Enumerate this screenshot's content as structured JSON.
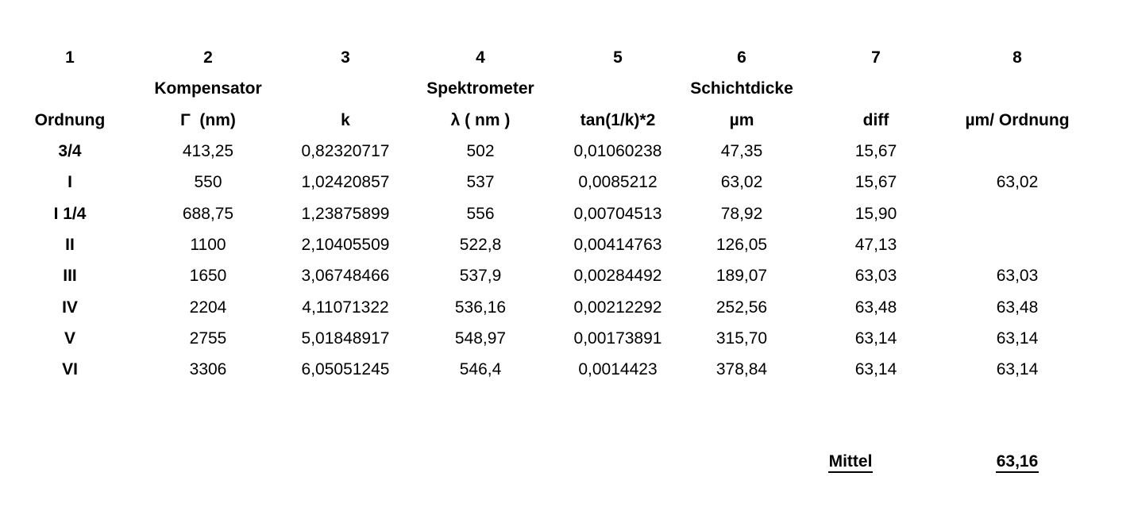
{
  "colors": {
    "text": "#000000",
    "background": "#ffffff"
  },
  "chart_data": {
    "type": "table",
    "column_numbers": [
      "1",
      "2",
      "3",
      "4",
      "5",
      "6",
      "7",
      "8"
    ],
    "group_headers": {
      "kompensator": "Kompensator",
      "spektrometer": "Spektrometer",
      "schichtdicke": "Schichtdicke"
    },
    "column_headers": [
      "Ordnung",
      "Γ  (nm)",
      "k",
      "λ ( nm )",
      "tan(1/k)*2",
      "µm",
      "diff",
      "µm/ Ordnung"
    ],
    "rows": [
      [
        "3/4",
        "413,25",
        "0,82320717",
        "502",
        "0,01060238",
        "47,35",
        "15,67",
        ""
      ],
      [
        "I",
        "550",
        "1,02420857",
        "537",
        "0,0085212",
        "63,02",
        "15,67",
        "63,02"
      ],
      [
        "I 1/4",
        "688,75",
        "1,23875899",
        "556",
        "0,00704513",
        "78,92",
        "15,90",
        ""
      ],
      [
        "II",
        "1100",
        "2,10405509",
        "522,8",
        "0,00414763",
        "126,05",
        "47,13",
        ""
      ],
      [
        "III",
        "1650",
        "3,06748466",
        "537,9",
        "0,00284492",
        "189,07",
        "63,03",
        "63,03"
      ],
      [
        "IV",
        "2204",
        "4,11071322",
        "536,16",
        "0,00212292",
        "252,56",
        "63,48",
        "63,48"
      ],
      [
        "V",
        "2755",
        "5,01848917",
        "548,97",
        "0,00173891",
        "315,70",
        "63,14",
        "63,14"
      ],
      [
        "VI",
        "3306",
        "6,05051245",
        "546,4",
        "0,0014423",
        "378,84",
        "63,14",
        "63,14"
      ]
    ],
    "footer_label": "Mittel",
    "footer_value": "63,16"
  }
}
